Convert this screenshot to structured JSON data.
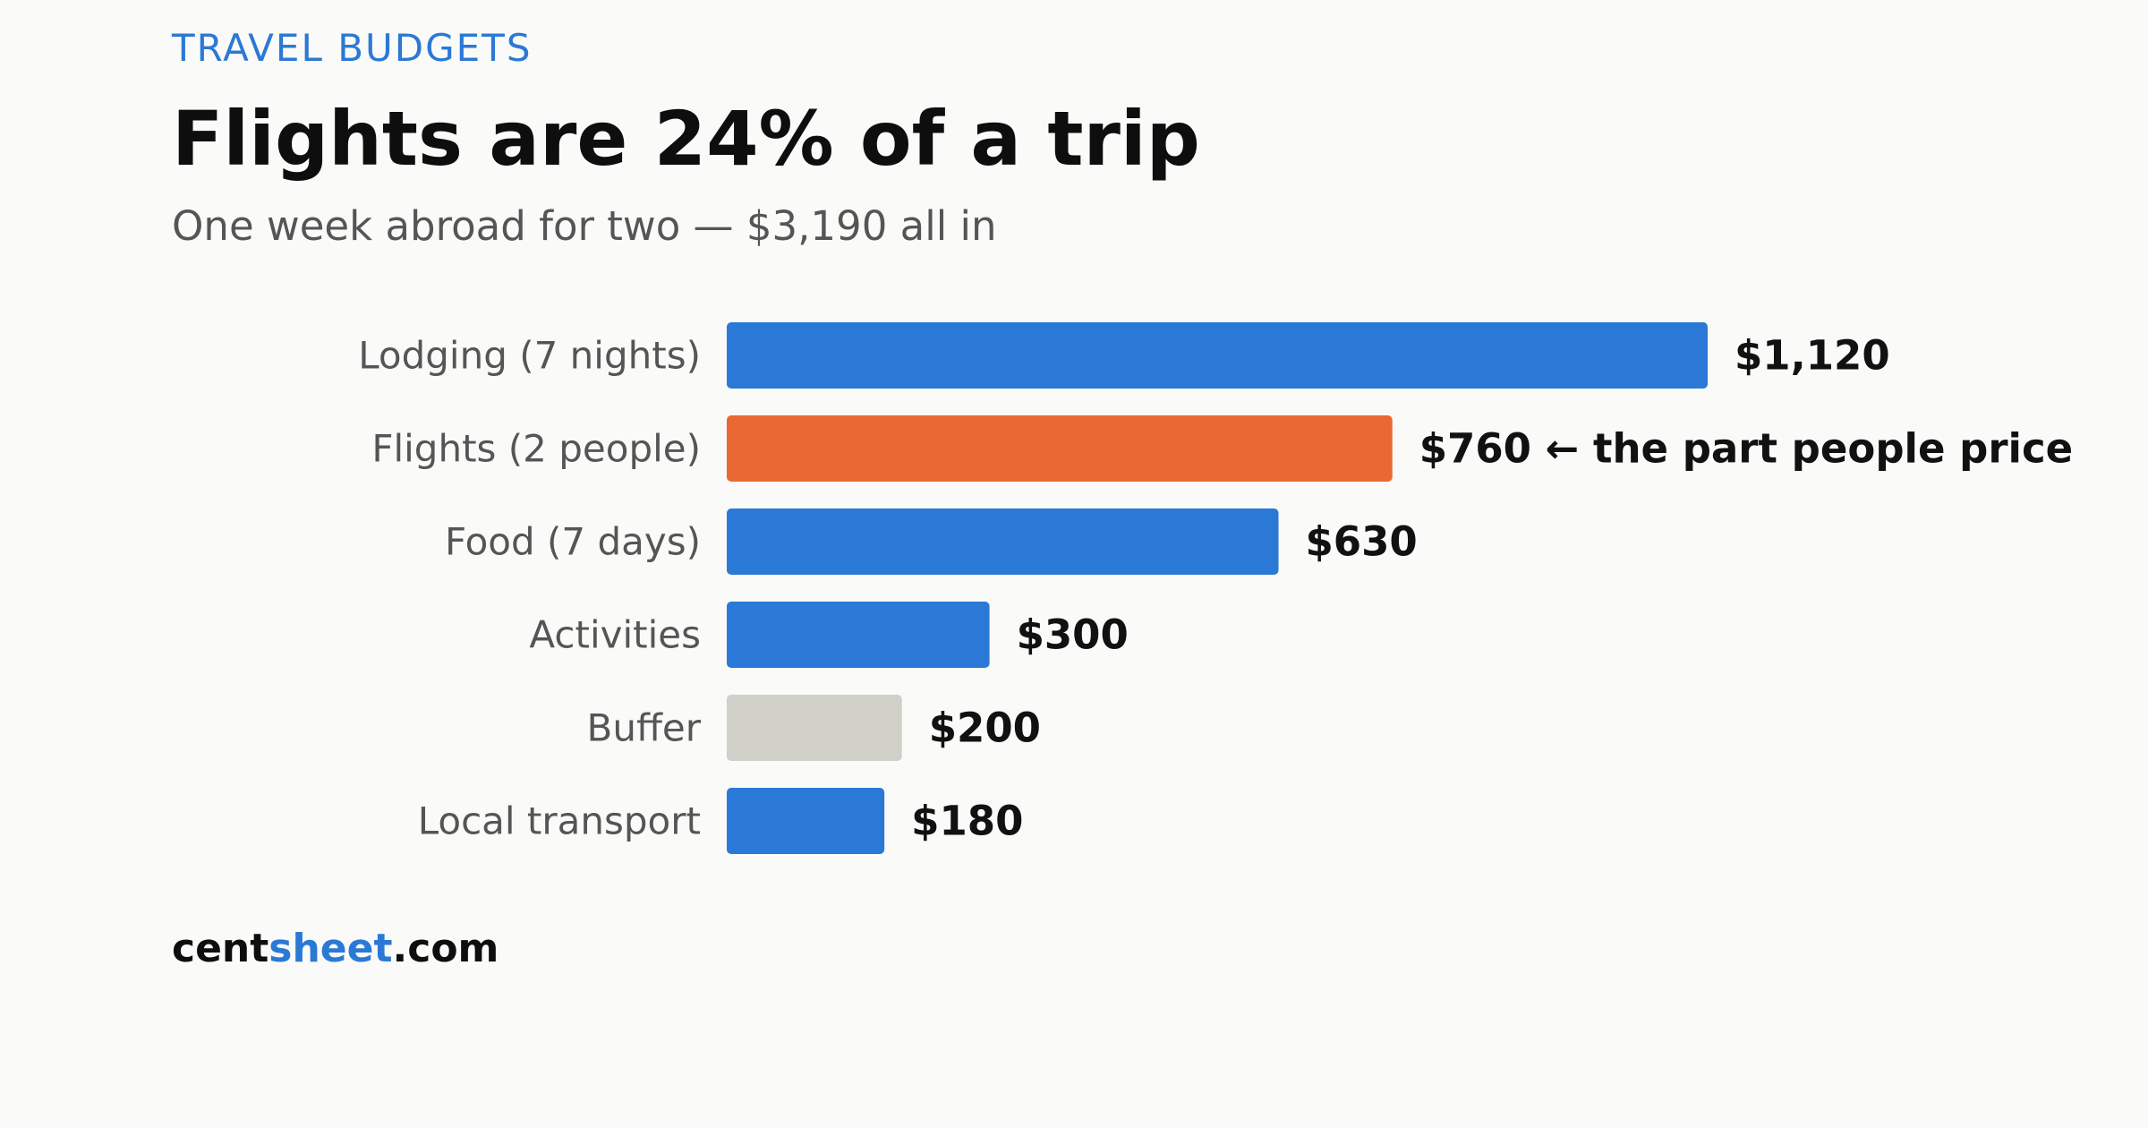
{
  "header": {
    "eyebrow": "TRAVEL BUDGETS",
    "title": "Flights are 24% of a trip",
    "subtitle": "One week abroad for two — $3,190 all in"
  },
  "brand": {
    "part1": "cent",
    "part2": "sheet",
    "part3": ".com"
  },
  "colors": {
    "default_bar": "#2b79d6",
    "highlight_bar": "#ea6833",
    "muted_bar": "#d0cfc8",
    "accent": "#2b79d6"
  },
  "chart_data": {
    "type": "bar",
    "orientation": "horizontal",
    "title": "Flights are 24% of a trip",
    "subtitle": "One week abroad for two — $3,190 all in",
    "xlabel": "",
    "ylabel": "",
    "grid": false,
    "xlim": [
      0,
      1120
    ],
    "categories": [
      "Lodging (7 nights)",
      "Flights (2 people)",
      "Food (7 days)",
      "Activities",
      "Buffer",
      "Local transport"
    ],
    "values": [
      1120,
      760,
      630,
      300,
      200,
      180
    ],
    "value_labels": [
      "$1,120",
      "$760 ← the part people price",
      "$630",
      "$300",
      "$200",
      "$180"
    ],
    "bar_colors": [
      "#2b79d6",
      "#ea6833",
      "#2b79d6",
      "#2b79d6",
      "#d0cfc8",
      "#2b79d6"
    ]
  }
}
